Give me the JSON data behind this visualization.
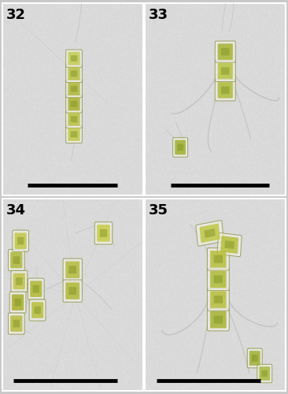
{
  "figure_width": 3.66,
  "figure_height": 5.0,
  "dpi": 100,
  "bg_color": "#c8c8c8",
  "panel_bg": "#d0d0d0",
  "labels": [
    "32",
    "33",
    "34",
    "35"
  ],
  "label_fontsize": 13,
  "label_fontweight": "bold",
  "label_color": "black",
  "cell_face": "#b8c040",
  "cell_edge": "#888830",
  "cell_inner": "#7a9020",
  "seta_color": "#b0b0b0",
  "scale_bar_color": "black",
  "scale_bar_lw": 3.5,
  "border_color": "white",
  "border_lw": 1.5
}
